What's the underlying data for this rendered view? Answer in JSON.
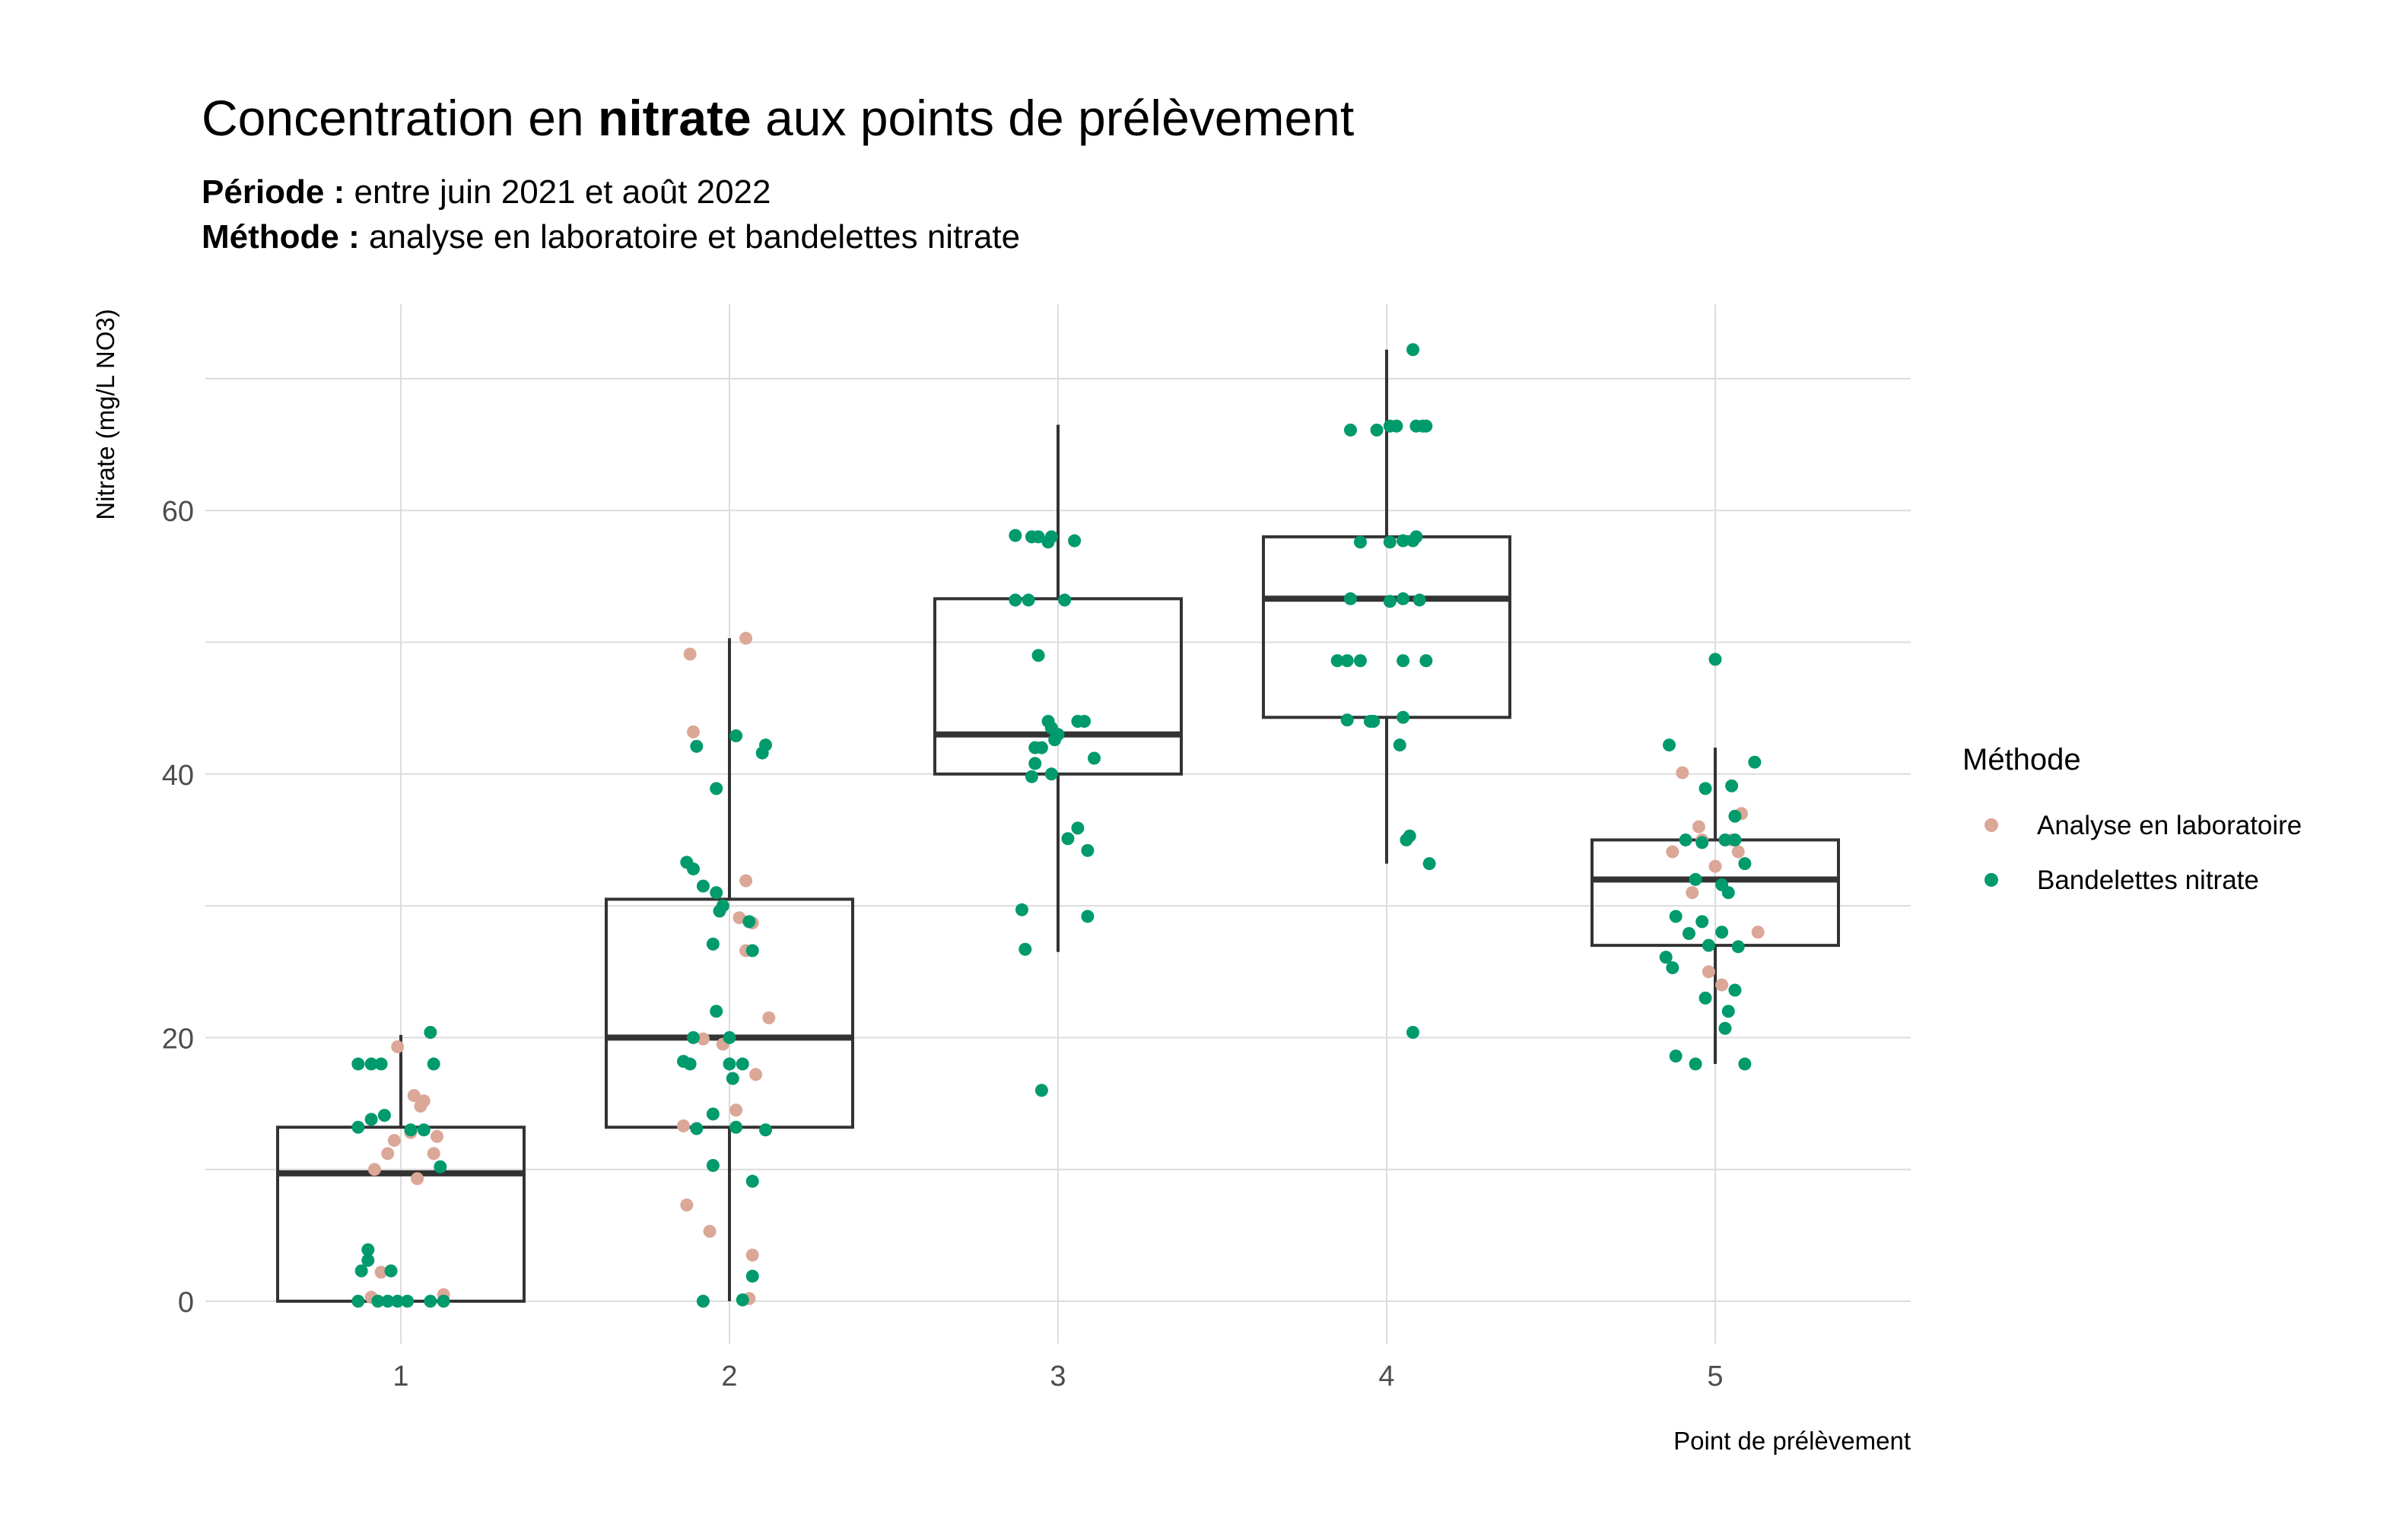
{
  "title": {
    "prefix": "Concentration en ",
    "bold": "nitrate",
    "suffix": " aux points de prélèvement"
  },
  "subtitle": {
    "line1_bold": "Période : ",
    "line1_text": "entre juin 2021 et août 2022",
    "line2_bold": "Méthode : ",
    "line2_text": "analyse en laboratoire et bandelettes nitrate"
  },
  "colors": {
    "lab": "#dba797",
    "strip": "#009a6c",
    "box": "#333333",
    "grid": "#dcdcdc"
  },
  "chart_data": {
    "type": "box",
    "xlabel": "Point de prélèvement",
    "ylabel": "Nitrate (mg/L NO3)",
    "categories": [
      "1",
      "2",
      "3",
      "4",
      "5"
    ],
    "ylim": [
      -3,
      73
    ],
    "yticks": [
      0,
      20,
      40,
      60
    ],
    "grid": true,
    "legend": {
      "title": "Méthode",
      "position": "right",
      "entries": [
        "Analyse en laboratoire",
        "Bandelettes nitrate"
      ]
    },
    "boxes": [
      {
        "x": "1",
        "whisker_low": 0,
        "q1": 0,
        "median": 9.7,
        "q3": 13.2,
        "whisker_high": 20.2
      },
      {
        "x": "2",
        "whisker_low": 0,
        "q1": 13.2,
        "median": 20,
        "q3": 30.5,
        "whisker_high": 50.3
      },
      {
        "x": "3",
        "whisker_low": 26.5,
        "q1": 40,
        "median": 43,
        "q3": 53.3,
        "whisker_high": 66.5
      },
      {
        "x": "4",
        "whisker_low": 33.2,
        "q1": 44.3,
        "median": 53.3,
        "q3": 58,
        "whisker_high": 72.2
      },
      {
        "x": "5",
        "whisker_low": 18,
        "q1": 27,
        "median": 32,
        "q3": 35,
        "whisker_high": 42
      }
    ],
    "series": [
      {
        "name": "Analyse en laboratoire",
        "points": [
          [
            0.99,
            19.3
          ],
          [
            1.04,
            15.6
          ],
          [
            1.06,
            14.8
          ],
          [
            1.07,
            15.2
          ],
          [
            1.11,
            12.5
          ],
          [
            0.98,
            12.2
          ],
          [
            1.03,
            12.8
          ],
          [
            1.1,
            11.2
          ],
          [
            0.96,
            11.2
          ],
          [
            1.05,
            9.3
          ],
          [
            0.92,
            10
          ],
          [
            0.94,
            2.2
          ],
          [
            1.13,
            0.5
          ],
          [
            0.91,
            0.3
          ],
          [
            1.88,
            49.1
          ],
          [
            1.89,
            43.2
          ],
          [
            2.05,
            50.3
          ],
          [
            2.05,
            31.9
          ],
          [
            2.03,
            29.1
          ],
          [
            2.07,
            28.7
          ],
          [
            2.05,
            26.6
          ],
          [
            2.12,
            21.5
          ],
          [
            1.92,
            19.9
          ],
          [
            1.98,
            19.5
          ],
          [
            2.08,
            17.2
          ],
          [
            2.02,
            14.5
          ],
          [
            1.86,
            13.3
          ],
          [
            1.87,
            7.3
          ],
          [
            1.94,
            5.3
          ],
          [
            2.07,
            3.5
          ],
          [
            2.06,
            0.2
          ],
          [
            4.9,
            40.1
          ],
          [
            4.95,
            36
          ],
          [
            5.08,
            37
          ],
          [
            4.87,
            34.1
          ],
          [
            5.07,
            34.1
          ],
          [
            4.96,
            35
          ],
          [
            5.05,
            35
          ],
          [
            5,
            33
          ],
          [
            4.93,
            31
          ],
          [
            5.13,
            28
          ],
          [
            4.98,
            25
          ],
          [
            5.02,
            24
          ]
        ]
      },
      {
        "name": "Bandelettes nitrate",
        "points": [
          [
            0.87,
            18
          ],
          [
            0.91,
            18
          ],
          [
            0.94,
            18
          ],
          [
            1.1,
            18
          ],
          [
            1.09,
            20.4
          ],
          [
            0.91,
            13.8
          ],
          [
            0.95,
            14.1
          ],
          [
            0.87,
            13.2
          ],
          [
            1.03,
            13
          ],
          [
            1.07,
            13
          ],
          [
            1.12,
            10.2
          ],
          [
            0.9,
            3.9
          ],
          [
            0.9,
            3.1
          ],
          [
            0.88,
            2.3
          ],
          [
            0.97,
            2.3
          ],
          [
            0.87,
            0
          ],
          [
            0.93,
            0
          ],
          [
            0.99,
            0
          ],
          [
            1.02,
            0
          ],
          [
            1.09,
            0
          ],
          [
            1.13,
            0
          ],
          [
            0.96,
            0
          ],
          [
            2.02,
            42.9
          ],
          [
            1.9,
            42.1
          ],
          [
            2.11,
            42.2
          ],
          [
            2.1,
            41.6
          ],
          [
            1.96,
            38.9
          ],
          [
            1.87,
            33.3
          ],
          [
            1.89,
            32.8
          ],
          [
            1.92,
            31.5
          ],
          [
            1.96,
            31
          ],
          [
            1.98,
            30
          ],
          [
            1.97,
            29.6
          ],
          [
            2.06,
            28.8
          ],
          [
            1.95,
            27.1
          ],
          [
            2.07,
            26.6
          ],
          [
            1.96,
            22
          ],
          [
            1.86,
            18.2
          ],
          [
            1.88,
            18
          ],
          [
            2.0,
            18
          ],
          [
            2.04,
            18
          ],
          [
            2.01,
            16.9
          ],
          [
            1.89,
            20
          ],
          [
            2.0,
            20
          ],
          [
            1.95,
            14.2
          ],
          [
            2.02,
            13.2
          ],
          [
            1.9,
            13.1
          ],
          [
            2.11,
            13
          ],
          [
            1.95,
            10.3
          ],
          [
            2.07,
            9.1
          ],
          [
            2.07,
            1.9
          ],
          [
            2.04,
            0.1
          ],
          [
            1.92,
            0
          ],
          [
            2.87,
            58.1
          ],
          [
            2.92,
            58
          ],
          [
            2.94,
            58
          ],
          [
            2.97,
            57.6
          ],
          [
            2.98,
            58
          ],
          [
            3.05,
            57.7
          ],
          [
            2.87,
            53.2
          ],
          [
            2.91,
            53.2
          ],
          [
            3.02,
            53.2
          ],
          [
            2.94,
            49
          ],
          [
            2.97,
            44
          ],
          [
            3.06,
            44
          ],
          [
            3.08,
            44
          ],
          [
            2.98,
            43.5
          ],
          [
            3.0,
            43
          ],
          [
            2.93,
            42
          ],
          [
            2.95,
            42
          ],
          [
            2.99,
            42.6
          ],
          [
            3.11,
            41.2
          ],
          [
            2.93,
            40.8
          ],
          [
            2.92,
            39.8
          ],
          [
            2.98,
            40
          ],
          [
            3.06,
            35.9
          ],
          [
            3.03,
            35.1
          ],
          [
            3.09,
            34.2
          ],
          [
            2.89,
            29.7
          ],
          [
            3.09,
            29.2
          ],
          [
            2.9,
            26.7
          ],
          [
            2.95,
            16
          ],
          [
            4.08,
            72.2
          ],
          [
            3.89,
            66.1
          ],
          [
            3.97,
            66.1
          ],
          [
            4.01,
            66.4
          ],
          [
            4.03,
            66.4
          ],
          [
            4.09,
            66.4
          ],
          [
            4.11,
            66.4
          ],
          [
            4.12,
            66.4
          ],
          [
            3.92,
            57.6
          ],
          [
            4.01,
            57.6
          ],
          [
            4.05,
            57.7
          ],
          [
            4.08,
            57.7
          ],
          [
            4.09,
            58
          ],
          [
            3.89,
            53.3
          ],
          [
            4.01,
            53.1
          ],
          [
            4.05,
            53.3
          ],
          [
            4.1,
            53.2
          ],
          [
            3.85,
            48.6
          ],
          [
            3.88,
            48.6
          ],
          [
            3.92,
            48.6
          ],
          [
            4.05,
            48.6
          ],
          [
            4.12,
            48.6
          ],
          [
            3.88,
            44.1
          ],
          [
            3.95,
            44
          ],
          [
            3.96,
            44
          ],
          [
            4.05,
            44.3
          ],
          [
            4.04,
            42.2
          ],
          [
            4.07,
            35.3
          ],
          [
            4.06,
            35
          ],
          [
            4.13,
            33.2
          ],
          [
            4.08,
            20.4
          ],
          [
            4.86,
            42.2
          ],
          [
            5.0,
            48.7
          ],
          [
            5.12,
            40.9
          ],
          [
            5.05,
            39.1
          ],
          [
            4.97,
            38.9
          ],
          [
            5.06,
            36.8
          ],
          [
            5.03,
            35
          ],
          [
            5.06,
            35
          ],
          [
            4.96,
            34.8
          ],
          [
            4.91,
            35
          ],
          [
            5.09,
            33.2
          ],
          [
            4.94,
            32
          ],
          [
            5.02,
            31.6
          ],
          [
            5.04,
            31
          ],
          [
            4.88,
            29.2
          ],
          [
            4.96,
            28.8
          ],
          [
            4.92,
            27.9
          ],
          [
            5.02,
            28
          ],
          [
            4.85,
            26.1
          ],
          [
            4.98,
            27
          ],
          [
            5.07,
            26.9
          ],
          [
            4.87,
            25.3
          ],
          [
            5.06,
            23.6
          ],
          [
            4.97,
            23
          ],
          [
            5.04,
            22
          ],
          [
            5.03,
            20.7
          ],
          [
            4.88,
            18.6
          ],
          [
            4.94,
            18
          ],
          [
            5.09,
            18
          ]
        ]
      }
    ]
  }
}
